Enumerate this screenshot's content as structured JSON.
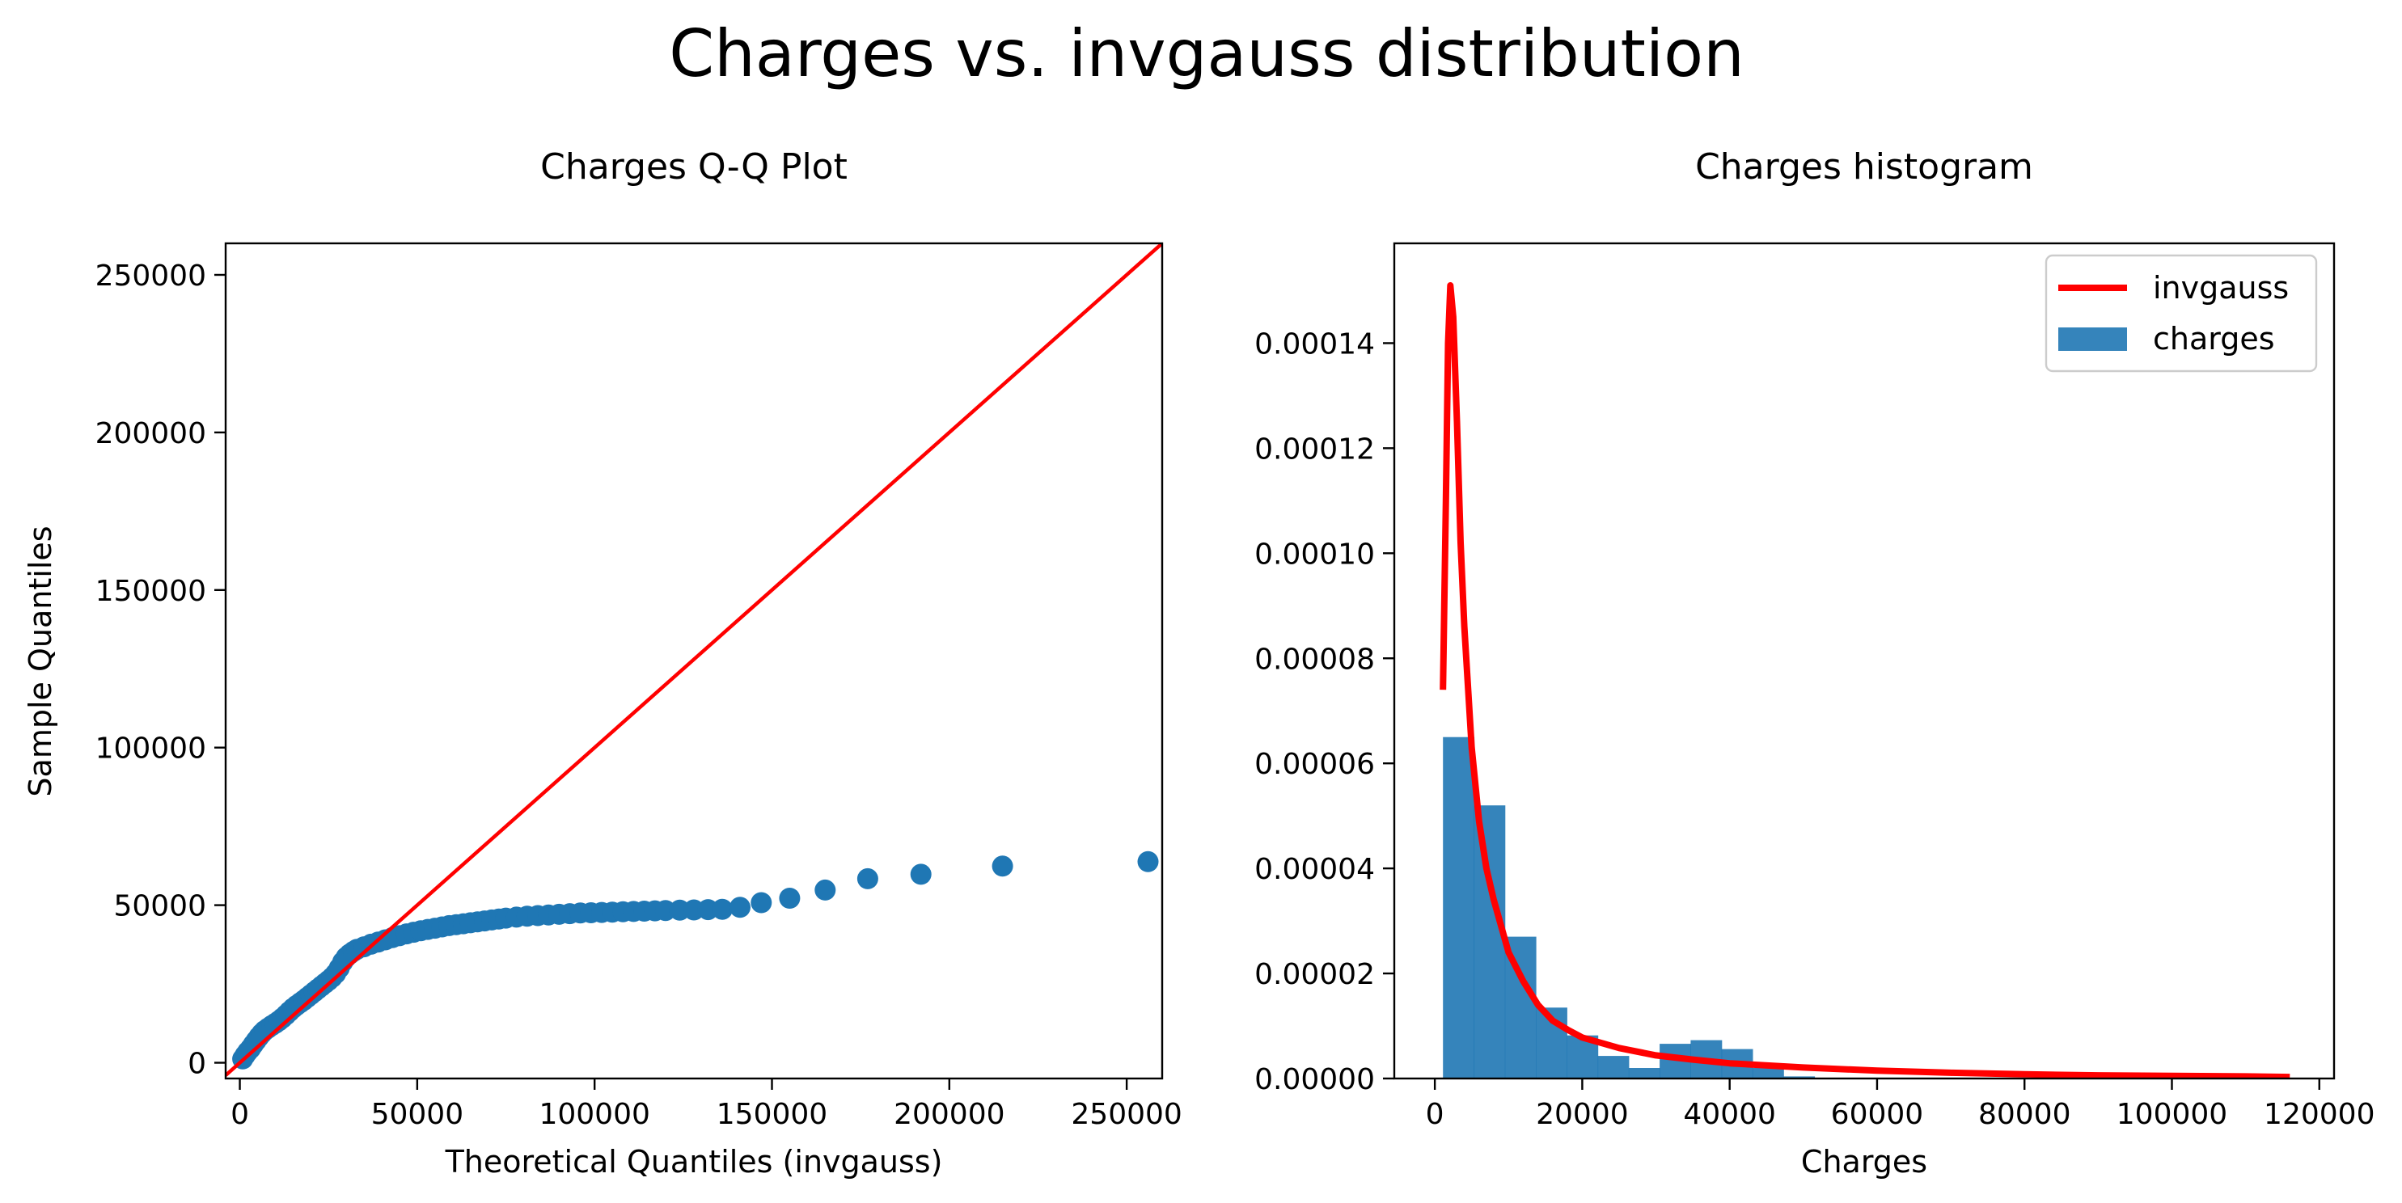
{
  "suptitle": "Charges vs. invgauss distribution",
  "chart_data": [
    {
      "type": "scatter",
      "title": "Charges Q-Q Plot",
      "xlabel": "Theoretical Quantiles (invgauss)",
      "ylabel": "Sample Quantiles",
      "xlim": [
        -4000,
        260000
      ],
      "ylim": [
        -5000,
        260000
      ],
      "xticks": [
        0,
        50000,
        100000,
        150000,
        200000,
        250000
      ],
      "yticks": [
        0,
        50000,
        100000,
        150000,
        200000,
        250000
      ],
      "xtick_labels": [
        "0",
        "50000",
        "100000",
        "150000",
        "200000",
        "250000"
      ],
      "ytick_labels": [
        "0",
        "50000",
        "100000",
        "150000",
        "200000",
        "250000"
      ],
      "point_color": "#1f77b4",
      "reference_line": {
        "from": [
          -4000,
          -4000
        ],
        "to": [
          260000,
          260000
        ],
        "color": "#ff0000"
      },
      "points": [
        [
          800,
          1200
        ],
        [
          1500,
          2400
        ],
        [
          2200,
          3500
        ],
        [
          3000,
          4500
        ],
        [
          3800,
          5800
        ],
        [
          4600,
          7000
        ],
        [
          5400,
          8200
        ],
        [
          6200,
          9300
        ],
        [
          7000,
          10200
        ],
        [
          8000,
          11000
        ],
        [
          9000,
          11800
        ],
        [
          10000,
          12500
        ],
        [
          11000,
          13300
        ],
        [
          12000,
          14200
        ],
        [
          13000,
          15200
        ],
        [
          14000,
          16300
        ],
        [
          15000,
          17300
        ],
        [
          16000,
          18200
        ],
        [
          17000,
          19000
        ],
        [
          18000,
          19800
        ],
        [
          19000,
          20700
        ],
        [
          20000,
          21600
        ],
        [
          21000,
          22500
        ],
        [
          22000,
          23400
        ],
        [
          23000,
          24300
        ],
        [
          24000,
          25200
        ],
        [
          25000,
          26100
        ],
        [
          26000,
          27100
        ],
        [
          27000,
          28300
        ],
        [
          28000,
          30000
        ],
        [
          29000,
          32000
        ],
        [
          30000,
          33500
        ],
        [
          31000,
          34500
        ],
        [
          32000,
          35300
        ],
        [
          33000,
          36000
        ],
        [
          35000,
          36800
        ],
        [
          37000,
          37600
        ],
        [
          39000,
          38300
        ],
        [
          41000,
          39000
        ],
        [
          43000,
          39700
        ],
        [
          45000,
          40300
        ],
        [
          47000,
          40900
        ],
        [
          49000,
          41400
        ],
        [
          51000,
          41900
        ],
        [
          53000,
          42300
        ],
        [
          55000,
          42700
        ],
        [
          57000,
          43100
        ],
        [
          59000,
          43500
        ],
        [
          61000,
          43800
        ],
        [
          63000,
          44100
        ],
        [
          65000,
          44400
        ],
        [
          67000,
          44700
        ],
        [
          69000,
          45000
        ],
        [
          71000,
          45300
        ],
        [
          73000,
          45600
        ],
        [
          75000,
          45900
        ],
        [
          78000,
          46200
        ],
        [
          81000,
          46500
        ],
        [
          84000,
          46700
        ],
        [
          87000,
          46900
        ],
        [
          90000,
          47100
        ],
        [
          93000,
          47300
        ],
        [
          96000,
          47500
        ],
        [
          99000,
          47600
        ],
        [
          102000,
          47700
        ],
        [
          105000,
          47800
        ],
        [
          108000,
          47900
        ],
        [
          111000,
          48000
        ],
        [
          114000,
          48100
        ],
        [
          117000,
          48200
        ],
        [
          120000,
          48300
        ],
        [
          124000,
          48400
        ],
        [
          128000,
          48500
        ],
        [
          132000,
          48600
        ],
        [
          136000,
          48700
        ],
        [
          141000,
          49300
        ],
        [
          147000,
          50800
        ],
        [
          155000,
          52200
        ],
        [
          165000,
          54800
        ],
        [
          177000,
          58400
        ],
        [
          192000,
          59800
        ],
        [
          215000,
          62400
        ],
        [
          256000,
          63800
        ]
      ]
    },
    {
      "type": "bar",
      "title": "Charges histogram",
      "xlabel": "Charges",
      "xlim": [
        -5500,
        122000
      ],
      "ylim": [
        0,
        0.000159
      ],
      "xticks": [
        0,
        20000,
        40000,
        60000,
        80000,
        100000,
        120000
      ],
      "yticks": [
        0,
        2e-05,
        4e-05,
        6e-05,
        8e-05,
        0.0001,
        0.00012,
        0.00014
      ],
      "xtick_labels": [
        "0",
        "20000",
        "40000",
        "60000",
        "80000",
        "100000",
        "120000"
      ],
      "ytick_labels": [
        "0.00000",
        "0.00002",
        "0.00004",
        "0.00006",
        "0.00008",
        "0.00010",
        "0.00012",
        "0.00014"
      ],
      "bar_color": "#1f77b4",
      "bar_alpha": 0.9,
      "bins": {
        "edges": [
          1100,
          5300,
          9500,
          13700,
          17900,
          22100,
          26300,
          30500,
          34700,
          38900,
          43100,
          47300,
          51500
        ],
        "values": [
          6.5e-05,
          5.2e-05,
          2.7e-05,
          1.35e-05,
          8.2e-06,
          4.3e-06,
          2e-06,
          6.6e-06,
          7.3e-06,
          5.6e-06,
          2e-06,
          4e-07
        ]
      },
      "curve_color": "#ff0000",
      "curve": [
        [
          1100,
          7.4e-05
        ],
        [
          1500,
          0.00011
        ],
        [
          1800,
          0.00014
        ],
        [
          2100,
          0.000151
        ],
        [
          2500,
          0.000145
        ],
        [
          3000,
          0.000125
        ],
        [
          3500,
          0.000102
        ],
        [
          4000,
          8.6e-05
        ],
        [
          5000,
          6.3e-05
        ],
        [
          6000,
          4.9e-05
        ],
        [
          7000,
          4e-05
        ],
        [
          8000,
          3.4e-05
        ],
        [
          10000,
          2.4e-05
        ],
        [
          12000,
          1.85e-05
        ],
        [
          14000,
          1.4e-05
        ],
        [
          16000,
          1.1e-05
        ],
        [
          18000,
          9.3e-06
        ],
        [
          20000,
          7.8e-06
        ],
        [
          25000,
          5.8e-06
        ],
        [
          30000,
          4.4e-06
        ],
        [
          35000,
          3.6e-06
        ],
        [
          40000,
          2.9e-06
        ],
        [
          50000,
          2.1e-06
        ],
        [
          60000,
          1.5e-06
        ],
        [
          70000,
          1.1e-06
        ],
        [
          80000,
          8e-07
        ],
        [
          90000,
          6e-07
        ],
        [
          100000,
          5e-07
        ],
        [
          110000,
          4e-07
        ],
        [
          116000,
          3e-07
        ]
      ],
      "legend": {
        "placement": "top-right",
        "entries": [
          {
            "label": "invgauss",
            "kind": "line",
            "color": "#ff0000"
          },
          {
            "label": "charges",
            "kind": "patch",
            "color": "#1f77b4"
          }
        ]
      }
    }
  ]
}
